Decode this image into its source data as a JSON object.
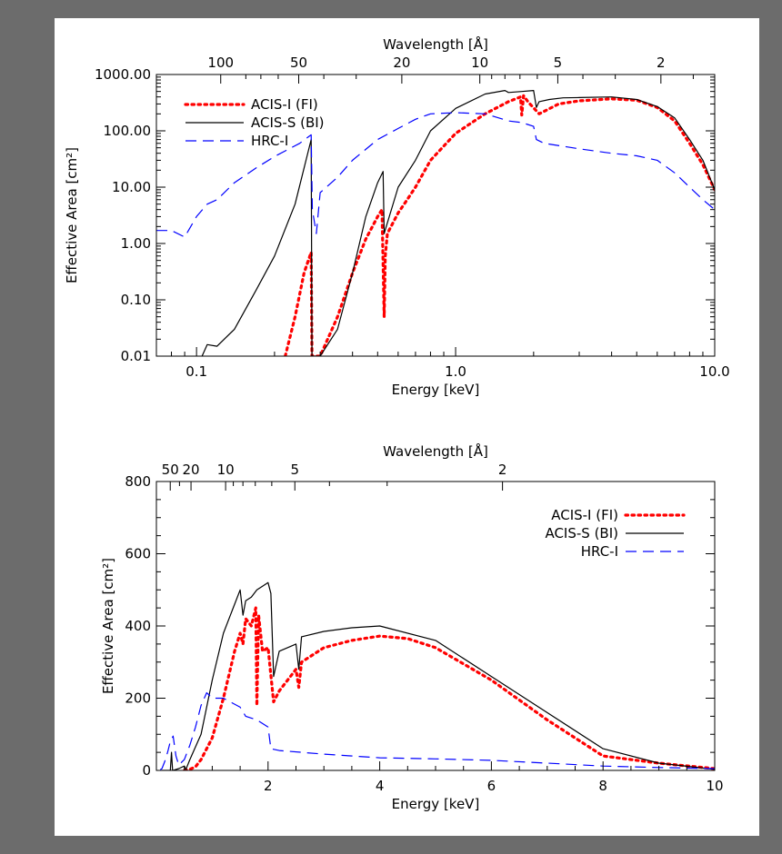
{
  "colors": {
    "background": "#6c6c6c",
    "panel": "#ffffff",
    "acis_i": "#ff0000",
    "acis_s": "#000000",
    "hrc_i": "#0000ff"
  },
  "chart_data": [
    {
      "type": "line",
      "x_scale": "log",
      "y_scale": "log",
      "xlabel": "Energy [keV]",
      "ylabel": "Effective Area [cm²]",
      "top_axis_label": "Wavelength [Å]",
      "xlim": [
        0.07,
        10.0
      ],
      "ylim": [
        0.01,
        1000.0
      ],
      "x_tick_labels": [
        "0.1",
        "1.0",
        "10.0"
      ],
      "y_tick_labels": [
        "0.01",
        "0.10",
        "1.00",
        "10.00",
        "100.00",
        "1000.00"
      ],
      "top_tick_labels": [
        "100",
        "50",
        "20",
        "10",
        "5",
        "2"
      ],
      "grid": false,
      "legend_placement": "top-left",
      "series": [
        {
          "name": "ACIS-I (FI)",
          "style": "dotted",
          "x": [
            0.22,
            0.24,
            0.26,
            0.277,
            0.279,
            0.3,
            0.35,
            0.4,
            0.45,
            0.5,
            0.52,
            0.53,
            0.535,
            0.545,
            0.6,
            0.65,
            0.7,
            0.8,
            1.0,
            1.3,
            1.6,
            1.78,
            1.8,
            1.83,
            1.9,
            2.1,
            2.5,
            3.0,
            4.0,
            5.0,
            6.0,
            7.0,
            8.0,
            9.0,
            10.0
          ],
          "y": [
            0.01,
            0.05,
            0.3,
            0.7,
            0.01,
            0.01,
            0.05,
            0.3,
            1.2,
            3.0,
            4.0,
            0.05,
            0.6,
            1.5,
            3.5,
            6.0,
            10.0,
            30.0,
            90.0,
            200.0,
            330.0,
            400.0,
            190.0,
            420.0,
            330.0,
            200.0,
            300.0,
            340.0,
            370.0,
            350.0,
            260.0,
            150.0,
            60.0,
            25.0,
            9.0
          ]
        },
        {
          "name": "ACIS-S (BI)",
          "style": "solid",
          "x": [
            0.105,
            0.11,
            0.12,
            0.14,
            0.17,
            0.2,
            0.24,
            0.277,
            0.279,
            0.3,
            0.35,
            0.4,
            0.45,
            0.5,
            0.525,
            0.53,
            0.54,
            0.6,
            0.7,
            0.8,
            1.0,
            1.3,
            1.55,
            1.6,
            1.8,
            2.0,
            2.05,
            2.1,
            2.3,
            2.6,
            3.0,
            4.0,
            5.0,
            6.0,
            7.0,
            8.0,
            9.0,
            10.0
          ],
          "y": [
            0.01,
            0.016,
            0.015,
            0.03,
            0.15,
            0.6,
            5.0,
            70.0,
            0.01,
            0.01,
            0.03,
            0.3,
            3.0,
            12.0,
            19.0,
            1.5,
            2.0,
            10.0,
            30.0,
            100.0,
            250.0,
            450.0,
            520.0,
            480.0,
            500.0,
            520.0,
            260.0,
            330.0,
            360.0,
            385.0,
            390.0,
            400.0,
            360.0,
            270.0,
            170.0,
            70.0,
            30.0,
            9.0
          ]
        },
        {
          "name": "HRC-I",
          "style": "dashed",
          "x": [
            0.07,
            0.08,
            0.09,
            0.095,
            0.1,
            0.11,
            0.12,
            0.14,
            0.17,
            0.2,
            0.25,
            0.277,
            0.28,
            0.29,
            0.3,
            0.35,
            0.4,
            0.5,
            0.6,
            0.7,
            0.8,
            1.0,
            1.3,
            1.6,
            1.8,
            2.0,
            2.05,
            2.2,
            3.0,
            4.0,
            5.0,
            6.0,
            7.0,
            8.0,
            9.0,
            10.0
          ],
          "y": [
            1.7,
            1.7,
            1.3,
            2.0,
            3.0,
            5.0,
            6.0,
            12.0,
            22.0,
            35.0,
            60.0,
            85.0,
            4.0,
            1.5,
            8.0,
            15.0,
            30.0,
            70.0,
            110.0,
            160.0,
            200.0,
            210.0,
            200.0,
            150.0,
            140.0,
            120.0,
            70.0,
            60.0,
            48.0,
            40.0,
            36.0,
            30.0,
            18.0,
            10.0,
            6.0,
            4.0
          ]
        }
      ]
    },
    {
      "type": "line",
      "x_scale": "linear",
      "y_scale": "linear",
      "xlabel": "Energy [keV]",
      "ylabel": "Effective Area [cm²]",
      "top_axis_label": "Wavelength [Å]",
      "xlim": [
        0.0,
        10.0
      ],
      "ylim": [
        0,
        800
      ],
      "x_tick_labels": [
        "2",
        "4",
        "6",
        "8",
        "10"
      ],
      "y_tick_labels": [
        "0",
        "200",
        "400",
        "600",
        "800"
      ],
      "top_tick_labels": [
        "50",
        "20",
        "10",
        "5",
        "2"
      ],
      "grid": false,
      "legend_placement": "top-right",
      "series": [
        {
          "name": "ACIS-I (FI)",
          "style": "dotted",
          "x": [
            0.5,
            0.6,
            0.7,
            0.8,
            1.0,
            1.2,
            1.4,
            1.5,
            1.55,
            1.6,
            1.7,
            1.78,
            1.8,
            1.83,
            1.9,
            2.0,
            2.1,
            2.2,
            2.5,
            2.55,
            2.6,
            3.0,
            3.5,
            4.0,
            4.5,
            5.0,
            6.0,
            7.0,
            8.0,
            9.0,
            10.0
          ],
          "y": [
            0,
            3,
            10,
            30,
            90,
            200,
            330,
            380,
            350,
            420,
            400,
            450,
            180,
            430,
            330,
            340,
            190,
            220,
            280,
            230,
            300,
            340,
            360,
            372,
            365,
            340,
            250,
            140,
            40,
            20,
            5
          ]
        },
        {
          "name": "ACIS-S (BI)",
          "style": "solid",
          "x": [
            0.1,
            0.25,
            0.27,
            0.29,
            0.3,
            0.4,
            0.5,
            0.53,
            0.6,
            0.8,
            1.0,
            1.2,
            1.4,
            1.5,
            1.55,
            1.6,
            1.7,
            1.8,
            1.9,
            2.0,
            2.05,
            2.1,
            2.2,
            2.5,
            2.55,
            2.6,
            3.0,
            3.5,
            4.0,
            5.0,
            6.0,
            7.0,
            8.0,
            9.0,
            10.0
          ],
          "y": [
            0,
            0,
            50,
            0,
            0,
            5,
            12,
            3,
            30,
            100,
            250,
            380,
            460,
            500,
            430,
            470,
            480,
            500,
            510,
            520,
            490,
            260,
            330,
            350,
            280,
            370,
            385,
            395,
            400,
            360,
            260,
            160,
            60,
            20,
            3
          ]
        },
        {
          "name": "HRC-I",
          "style": "dashed",
          "x": [
            0.07,
            0.1,
            0.15,
            0.2,
            0.25,
            0.3,
            0.35,
            0.4,
            0.5,
            0.6,
            0.7,
            0.8,
            0.9,
            1.0,
            1.2,
            1.5,
            1.6,
            1.8,
            2.0,
            2.05,
            2.2,
            3.0,
            4.0,
            5.0,
            6.0,
            7.0,
            8.0,
            9.0,
            10.0
          ],
          "y": [
            2,
            5,
            25,
            50,
            80,
            95,
            40,
            15,
            30,
            70,
            120,
            180,
            215,
            200,
            200,
            175,
            150,
            140,
            120,
            60,
            55,
            45,
            35,
            32,
            28,
            20,
            12,
            8,
            5
          ]
        }
      ]
    }
  ]
}
